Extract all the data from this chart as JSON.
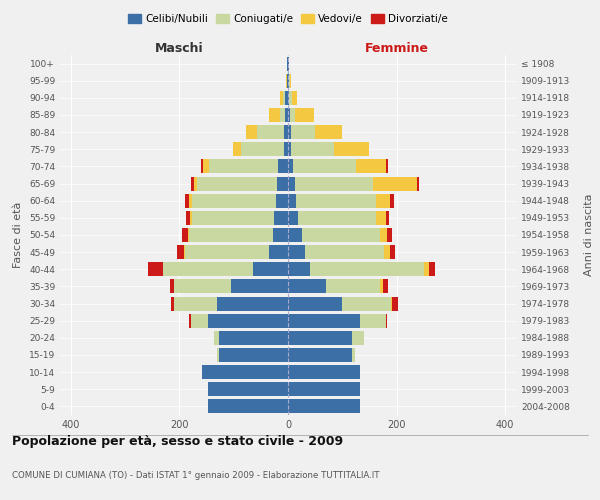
{
  "age_groups": [
    "0-4",
    "5-9",
    "10-14",
    "15-19",
    "20-24",
    "25-29",
    "30-34",
    "35-39",
    "40-44",
    "45-49",
    "50-54",
    "55-59",
    "60-64",
    "65-69",
    "70-74",
    "75-79",
    "80-84",
    "85-89",
    "90-94",
    "95-99",
    "100+"
  ],
  "birth_years": [
    "2004-2008",
    "1999-2003",
    "1994-1998",
    "1989-1993",
    "1984-1988",
    "1979-1983",
    "1974-1978",
    "1969-1973",
    "1964-1968",
    "1959-1963",
    "1954-1958",
    "1949-1953",
    "1944-1948",
    "1939-1943",
    "1934-1938",
    "1929-1933",
    "1924-1928",
    "1919-1923",
    "1914-1918",
    "1909-1913",
    "≤ 1908"
  ],
  "colors": {
    "celibi": "#3c6fa5",
    "coniugati": "#c8d8a0",
    "vedovi": "#f5c842",
    "divorziati": "#cc1a18"
  },
  "males": {
    "celibi": [
      148,
      148,
      158,
      128,
      128,
      148,
      130,
      105,
      65,
      35,
      28,
      25,
      22,
      20,
      18,
      8,
      8,
      5,
      5,
      2,
      1
    ],
    "coniugati": [
      0,
      0,
      0,
      2,
      8,
      30,
      80,
      105,
      165,
      155,
      155,
      152,
      155,
      148,
      128,
      78,
      50,
      10,
      5,
      0,
      0
    ],
    "vedovi": [
      0,
      0,
      0,
      0,
      0,
      0,
      0,
      0,
      0,
      2,
      2,
      3,
      5,
      5,
      10,
      15,
      20,
      20,
      5,
      2,
      0
    ],
    "divorziati": [
      0,
      0,
      0,
      0,
      0,
      5,
      5,
      8,
      28,
      12,
      10,
      8,
      8,
      5,
      5,
      0,
      0,
      0,
      0,
      0,
      0
    ]
  },
  "females": {
    "nubili": [
      132,
      132,
      132,
      118,
      118,
      132,
      100,
      70,
      40,
      32,
      25,
      18,
      15,
      12,
      10,
      5,
      5,
      3,
      2,
      2,
      1
    ],
    "coniugate": [
      0,
      0,
      0,
      5,
      22,
      48,
      90,
      100,
      210,
      145,
      145,
      145,
      148,
      145,
      115,
      80,
      45,
      10,
      5,
      2,
      0
    ],
    "vedove": [
      0,
      0,
      0,
      0,
      0,
      0,
      2,
      5,
      10,
      10,
      12,
      18,
      25,
      80,
      55,
      65,
      50,
      35,
      10,
      2,
      0
    ],
    "divorziate": [
      0,
      0,
      0,
      0,
      0,
      2,
      10,
      10,
      10,
      10,
      10,
      5,
      8,
      5,
      5,
      0,
      0,
      0,
      0,
      0,
      0
    ]
  },
  "xlim": 420,
  "xticks": [
    -400,
    -200,
    0,
    200,
    400
  ],
  "title": "Popolazione per età, sesso e stato civile - 2009",
  "subtitle": "COMUNE DI CUMIANA (TO) - Dati ISTAT 1° gennaio 2009 - Elaborazione TUTTITALIA.IT",
  "xlabel_left": "Maschi",
  "xlabel_right": "Femmine",
  "ylabel_left": "Fasce di età",
  "ylabel_right": "Anni di nascita",
  "legend_labels": [
    "Celibi/Nubili",
    "Coniugati/e",
    "Vedovi/e",
    "Divorziati/e"
  ],
  "bg_color": "#f0f0f0",
  "plot_bg": "#f0f0f0",
  "maschi_color": "#333333",
  "femmine_color": "#cc1a18"
}
